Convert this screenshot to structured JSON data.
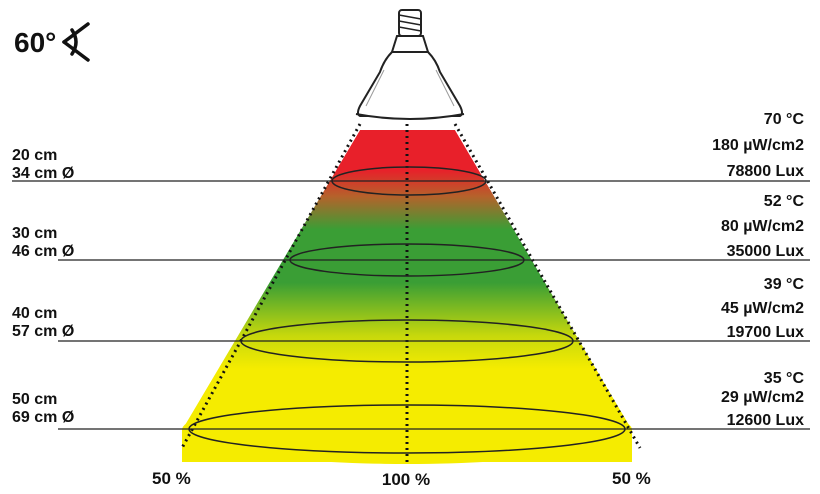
{
  "beam_angle": {
    "text": "60°",
    "icon": "beam-angle-icon"
  },
  "levels": [
    {
      "distance": "20 cm",
      "diameter": "34 cm Ø",
      "temperature": "70 °C",
      "uv": "180 µW/cm2",
      "lux": "78800 Lux"
    },
    {
      "distance": "30 cm",
      "diameter": "46 cm Ø",
      "temperature": "52 °C",
      "uv": "80 µW/cm2",
      "lux": "35000 Lux"
    },
    {
      "distance": "40 cm",
      "diameter": "57 cm Ø",
      "temperature": "39 °C",
      "uv": "45 µW/cm2",
      "lux": "19700 Lux"
    },
    {
      "distance": "50 cm",
      "diameter": "69 cm Ø",
      "temperature": "35 °C",
      "uv": "29 µW/cm2",
      "lux": "12600 Lux"
    }
  ],
  "bottom_labels": {
    "left": "50 %",
    "center": "100 %",
    "right": "50 %"
  },
  "colors": {
    "hot": "#e8202a",
    "mid": "#3a9e35",
    "cool": "#f5ec00"
  }
}
